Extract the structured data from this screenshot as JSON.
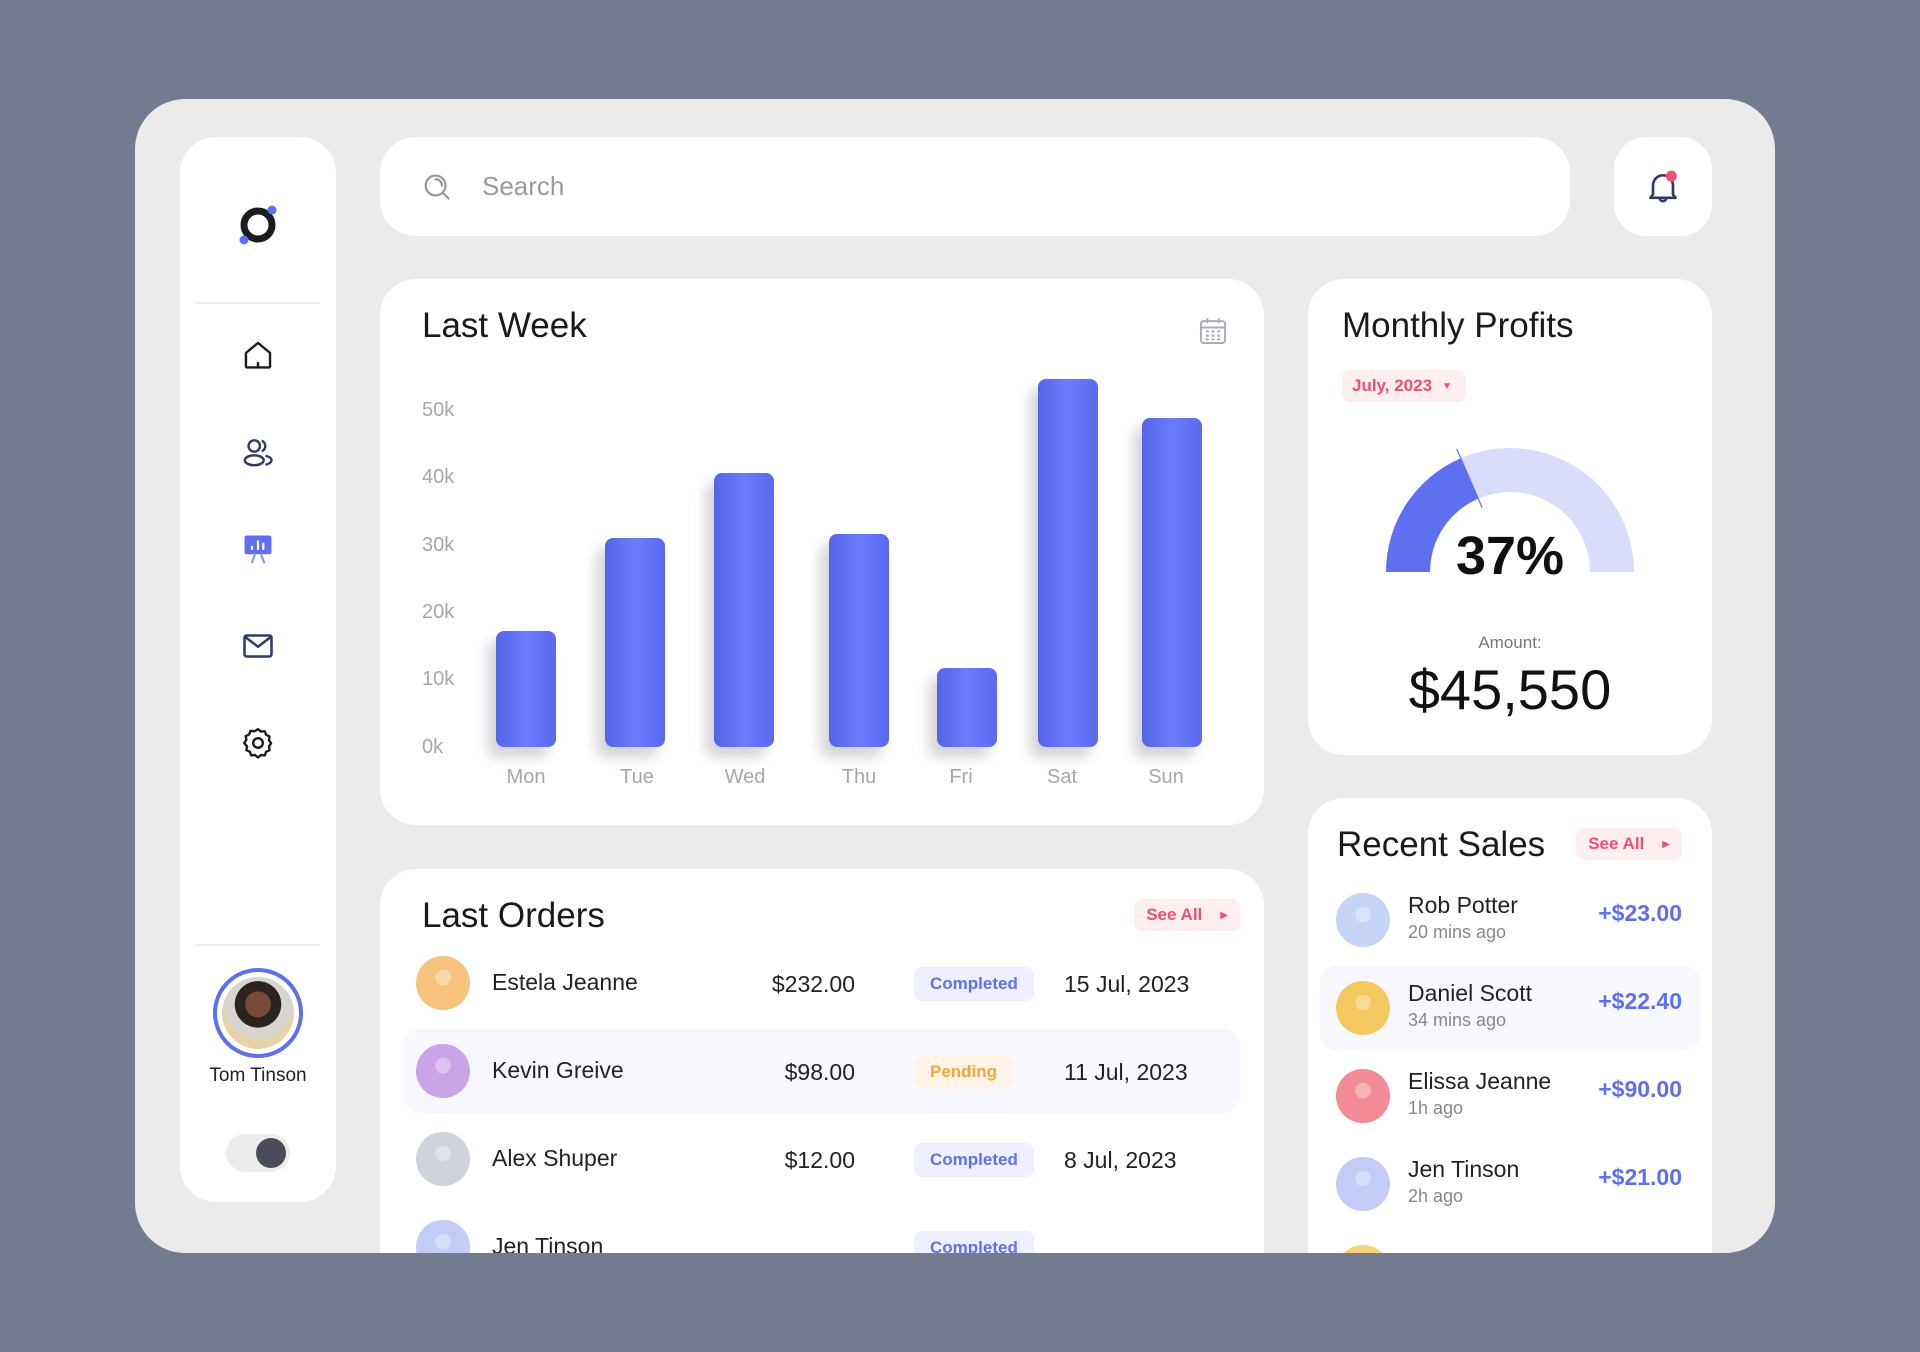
{
  "colors": {
    "accent": "#5e6ff0",
    "accent_light": "#d9ddfb",
    "danger": "#f0506e",
    "pending": "#f2a73b",
    "background": "#747b8e",
    "panel": "#ebebeb"
  },
  "sidebar": {
    "logo": "ring-logo",
    "items": [
      {
        "icon": "home-icon",
        "label": "Home",
        "active": false
      },
      {
        "icon": "users-icon",
        "label": "Users",
        "active": false
      },
      {
        "icon": "presentation-chart-icon",
        "label": "Analytics",
        "active": true
      },
      {
        "icon": "mail-icon",
        "label": "Messages",
        "active": false
      },
      {
        "icon": "gear-icon",
        "label": "Settings",
        "active": false
      }
    ],
    "user": {
      "name": "Tom Tinson"
    },
    "theme_toggle": {
      "state": "on"
    }
  },
  "header": {
    "search": {
      "placeholder": "Search",
      "value": ""
    },
    "notifications": {
      "has_unread": true
    }
  },
  "last_week": {
    "title": "Last Week",
    "y_ticks": [
      "50k",
      "40k",
      "30k",
      "20k",
      "10k",
      "0k"
    ],
    "days": [
      "Mon",
      "Tue",
      "Wed",
      "Thu",
      "Fri",
      "Sat",
      "Sun"
    ]
  },
  "chart_data": {
    "type": "bar",
    "title": "Last Week",
    "categories": [
      "Mon",
      "Tue",
      "Wed",
      "Thu",
      "Fri",
      "Sat",
      "Sun"
    ],
    "values": [
      16000,
      29000,
      38000,
      29500,
      11000,
      51000,
      45500
    ],
    "xlabel": "",
    "ylabel": "",
    "ylim": [
      0,
      50000
    ],
    "y_ticks": [
      "0k",
      "10k",
      "20k",
      "30k",
      "40k",
      "50k"
    ],
    "grid": false,
    "legend": null,
    "color": "#5e6ff0"
  },
  "monthly_profits": {
    "title": "Monthly Profits",
    "period": "July, 2023",
    "percent": 37,
    "percent_label": "37%",
    "amount_label": "Amount:",
    "amount": "$45,550"
  },
  "last_orders": {
    "title": "Last Orders",
    "see_all": "See All",
    "rows": [
      {
        "name": "Estela Jeanne",
        "amount": "$232.00",
        "status": "Completed",
        "date": "15 Jul, 2023",
        "avatar_color": "#f6c37d"
      },
      {
        "name": "Kevin Greive",
        "amount": "$98.00",
        "status": "Pending",
        "date": "11 Jul, 2023",
        "avatar_color": "#c9a5e8"
      },
      {
        "name": "Alex Shuper",
        "amount": "$12.00",
        "status": "Completed",
        "date": "8 Jul, 2023",
        "avatar_color": "#cfd3da"
      },
      {
        "name": "Jen Tinson",
        "amount": "",
        "status": "Completed",
        "date": "",
        "avatar_color": "#c3cbf7"
      }
    ]
  },
  "recent_sales": {
    "title": "Recent Sales",
    "see_all": "See All",
    "rows": [
      {
        "name": "Rob Potter",
        "time": "20 mins ago",
        "amount": "+$23.00",
        "avatar_color": "#c5d4f7"
      },
      {
        "name": "Daniel Scott",
        "time": "34 mins ago",
        "amount": "+$22.40",
        "avatar_color": "#f3c85e"
      },
      {
        "name": "Elissa Jeanne",
        "time": "1h ago",
        "amount": "+$90.00",
        "avatar_color": "#f28b95"
      },
      {
        "name": "Jen Tinson",
        "time": "2h ago",
        "amount": "+$21.00",
        "avatar_color": "#c3cbf7"
      },
      {
        "name": "",
        "time": "",
        "amount": "",
        "avatar_color": "#f3d27a"
      }
    ]
  }
}
